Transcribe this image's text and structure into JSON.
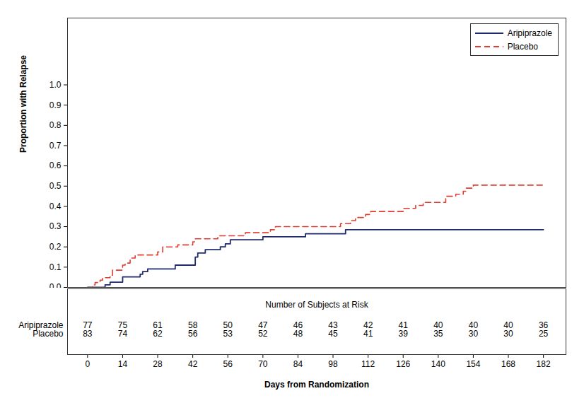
{
  "chart_data": {
    "type": "step",
    "ylabel": "Proportion with Relapse",
    "xlabel": "Days from Randomization",
    "xlim": [
      -8,
      191
    ],
    "xticks": [
      0,
      14,
      28,
      42,
      56,
      70,
      84,
      98,
      112,
      126,
      140,
      154,
      168,
      182
    ],
    "ylim": [
      0,
      1.33
    ],
    "yticks": [
      {
        "value": 0,
        "label": "0.0"
      },
      0.1,
      0.2,
      0.3,
      0.4,
      0.5,
      0.6,
      0.7,
      0.8,
      0.9,
      {
        "value": 1,
        "label": "1.0"
      }
    ],
    "legend": "top-right",
    "series": [
      {
        "name": "Aripiprazole",
        "color": "#1f2a6e",
        "line_style": "solid",
        "x": [
          0,
          7,
          9,
          14,
          21,
          22,
          24,
          35,
          43,
          44,
          47,
          53,
          55,
          57,
          70,
          87,
          103,
          182
        ],
        "values": [
          0,
          0.013,
          0.026,
          0.052,
          0.065,
          0.078,
          0.091,
          0.11,
          0.15,
          0.17,
          0.186,
          0.2,
          0.215,
          0.235,
          0.25,
          0.265,
          0.285,
          0.285
        ]
      },
      {
        "name": "Placebo",
        "color": "#e03c31",
        "line_style": "dashed",
        "x": [
          0,
          2,
          3,
          5,
          6,
          9,
          10,
          14,
          15,
          17,
          19,
          28,
          30,
          36,
          42,
          43,
          52,
          63,
          73,
          75,
          101,
          105,
          107,
          111,
          113,
          126,
          131,
          134,
          143,
          147,
          150,
          151,
          154,
          182
        ],
        "values": [
          0,
          0.012,
          0.024,
          0.036,
          0.048,
          0.06,
          0.085,
          0.11,
          0.12,
          0.145,
          0.16,
          0.175,
          0.2,
          0.21,
          0.225,
          0.24,
          0.255,
          0.27,
          0.285,
          0.3,
          0.315,
          0.33,
          0.345,
          0.36,
          0.375,
          0.39,
          0.405,
          0.42,
          0.45,
          0.46,
          0.475,
          0.49,
          0.505,
          0.505
        ]
      }
    ],
    "risk_table": {
      "title": "Number of Subjects at Risk",
      "x": [
        0,
        14,
        28,
        42,
        56,
        70,
        84,
        98,
        112,
        126,
        140,
        154,
        168,
        182
      ],
      "rows": [
        {
          "name": "Aripiprazole",
          "values": [
            77,
            75,
            61,
            58,
            50,
            47,
            46,
            43,
            42,
            41,
            40,
            40,
            40,
            36
          ]
        },
        {
          "name": "Placebo",
          "values": [
            83,
            74,
            62,
            56,
            53,
            52,
            48,
            45,
            41,
            39,
            35,
            30,
            30,
            25
          ]
        }
      ]
    }
  }
}
